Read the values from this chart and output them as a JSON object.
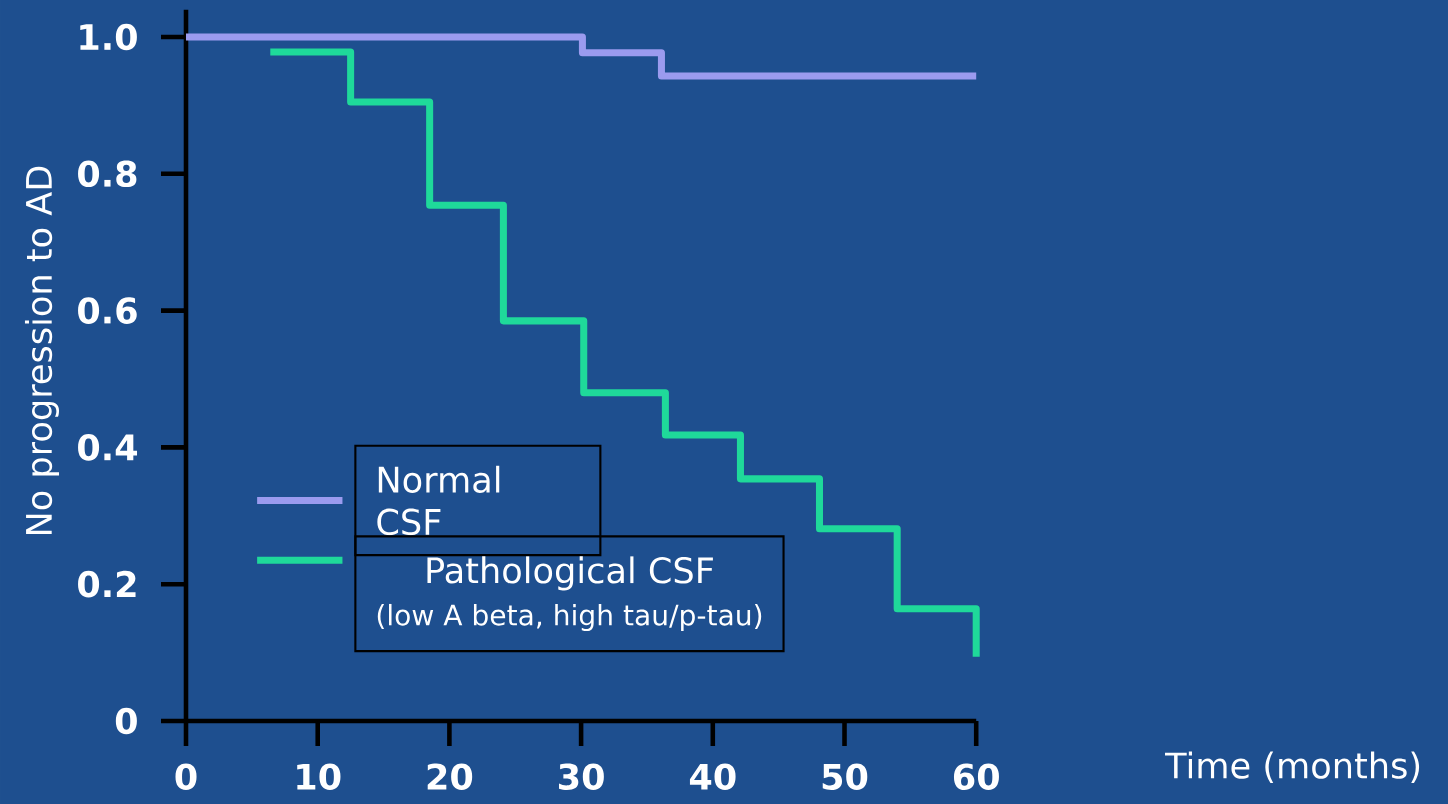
{
  "chart_data": {
    "type": "step",
    "xlabel": "Time (months)",
    "ylabel": "No progression to AD",
    "xlim": [
      0,
      60
    ],
    "ylim": [
      0,
      1.04
    ],
    "xticks": [
      0,
      10,
      20,
      30,
      40,
      50,
      60
    ],
    "yticks": [
      0,
      0.2,
      0.4,
      0.6,
      0.8,
      {
        "value": 1,
        "label": "1.0"
      }
    ],
    "legend": "bottom left",
    "series": [
      {
        "name": "Normal CSF",
        "color": "#9b9bef",
        "x": [
          0,
          30.1,
          36.1,
          60
        ],
        "values": [
          1.0,
          0.977,
          0.943,
          0.943
        ]
      },
      {
        "name": "Pathological CSF",
        "color": "#1fd99a",
        "x": [
          6.4,
          12.5,
          18.5,
          24.1,
          30.2,
          36.4,
          42.1,
          48.1,
          54.0,
          60
        ],
        "values": [
          0.978,
          0.905,
          0.754,
          0.585,
          0.48,
          0.418,
          0.354,
          0.281,
          0.164,
          0.094
        ]
      }
    ],
    "annotations": [
      "(low A beta, high tau/p-tau)"
    ]
  }
}
